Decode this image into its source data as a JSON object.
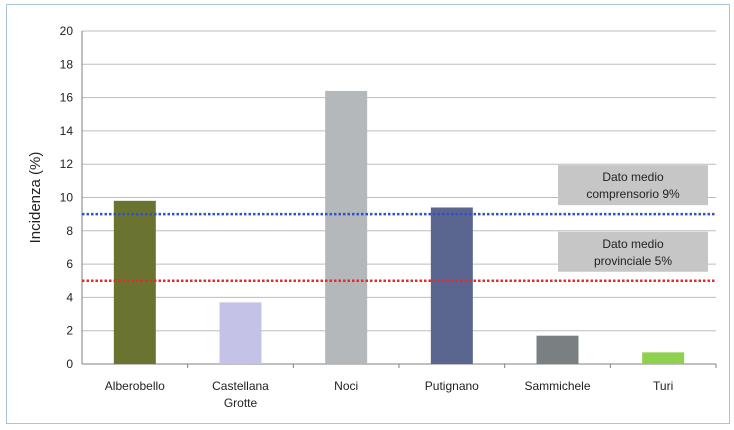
{
  "chart_data": {
    "type": "bar",
    "title": "",
    "xlabel": "",
    "ylabel": "Incidenza (%)",
    "ylim": [
      0,
      20
    ],
    "yticks": [
      0,
      2,
      4,
      6,
      8,
      10,
      12,
      14,
      16,
      18,
      20
    ],
    "grid": true,
    "categories": [
      [
        "Alberobello"
      ],
      [
        "Castellana",
        "Grotte"
      ],
      [
        "Noci"
      ],
      [
        "Putignano"
      ],
      [
        "Sammichele"
      ],
      [
        "Turi"
      ]
    ],
    "values": [
      9.8,
      3.7,
      16.4,
      9.4,
      1.7,
      0.7
    ],
    "colors": [
      "#6b7330",
      "#c4c2e6",
      "#b5b8bb",
      "#5a6690",
      "#7a8082",
      "#8fd14f"
    ],
    "reference_lines": [
      {
        "value": 9,
        "color": "#3050c8",
        "label": [
          "Dato medio",
          "comprensorio 9%"
        ]
      },
      {
        "value": 5,
        "color": "#e8282a",
        "label": [
          "Dato medio",
          "provinciale 5%"
        ]
      }
    ],
    "label_box_color": "#c6c6c6"
  }
}
